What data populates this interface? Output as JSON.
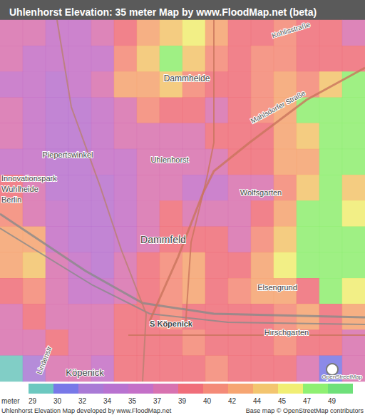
{
  "chart_data": {
    "type": "heatmap",
    "title": "Uhlenhorst Elevation: 35 meter Map by www.FloodMap.net (beta)",
    "tick_labels": false,
    "cells": [
      [
        37,
        37,
        35,
        35,
        37,
        39,
        42,
        44,
        45,
        42,
        39,
        39,
        40,
        39,
        39,
        37
      ],
      [
        37,
        35,
        35,
        35,
        35,
        40,
        44,
        47,
        44,
        40,
        39,
        40,
        40,
        39,
        39,
        39
      ],
      [
        35,
        35,
        34,
        35,
        37,
        42,
        42,
        44,
        40,
        39,
        39,
        40,
        42,
        40,
        44,
        47
      ],
      [
        37,
        35,
        34,
        34,
        35,
        37,
        40,
        39,
        39,
        37,
        39,
        40,
        42,
        47,
        47,
        47
      ],
      [
        37,
        35,
        34,
        34,
        35,
        37,
        37,
        37,
        37,
        39,
        39,
        39,
        42,
        44,
        47,
        47
      ],
      [
        35,
        35,
        34,
        34,
        35,
        35,
        37,
        37,
        37,
        37,
        39,
        39,
        42,
        42,
        47,
        47
      ],
      [
        39,
        37,
        34,
        34,
        34,
        35,
        37,
        37,
        35,
        35,
        37,
        37,
        40,
        44,
        47,
        44
      ],
      [
        40,
        37,
        35,
        34,
        34,
        35,
        37,
        39,
        37,
        37,
        37,
        39,
        42,
        47,
        47,
        45
      ],
      [
        42,
        42,
        35,
        34,
        34,
        35,
        37,
        39,
        39,
        39,
        37,
        40,
        44,
        47,
        47,
        47
      ],
      [
        42,
        44,
        37,
        35,
        34,
        37,
        39,
        40,
        42,
        39,
        39,
        42,
        45,
        47,
        47,
        47
      ],
      [
        39,
        40,
        37,
        35,
        35,
        37,
        39,
        40,
        42,
        39,
        40,
        42,
        42,
        39,
        47,
        45
      ],
      [
        37,
        39,
        37,
        37,
        37,
        39,
        39,
        40,
        39,
        39,
        39,
        39,
        40,
        42,
        39,
        42
      ],
      [
        37,
        37,
        39,
        37,
        37,
        39,
        39,
        39,
        40,
        39,
        39,
        39,
        40,
        39,
        39,
        37
      ],
      [
        29,
        32,
        37,
        37,
        35,
        39,
        39,
        39,
        39,
        40,
        39,
        39,
        39,
        37,
        30,
        37
      ]
    ],
    "colorbar": {
      "label": "meter",
      "ticks": [
        29,
        30,
        32,
        34,
        35,
        37,
        39,
        40,
        42,
        44,
        45,
        47,
        49
      ],
      "colors": [
        "#6cc8c0",
        "#7878e8",
        "#a97ad6",
        "#b872d0",
        "#c470c8",
        "#d872b0",
        "#f06e7a",
        "#f48a78",
        "#f6a572",
        "#f3c56f",
        "#f1ee74",
        "#8ff072",
        "#6ee07a"
      ]
    },
    "place_labels": [
      "Dammheide",
      "Piepertswinkel",
      "Uhlenhorst",
      "Innovationspark",
      "Wuhlheide",
      "Berlin",
      "Wolfsgarten",
      "Dammfeld",
      "Elsengrund",
      "S Köpenick",
      "Köpenick",
      "Hirschgarten"
    ],
    "street_labels": [
      "Mahlsdorfer Straße",
      "Kohlisstraße",
      "Lindenstr"
    ],
    "footer_left": "Uhlenhorst Elevation Map developed by www.FloodMap.net",
    "footer_right": "Base map © OpenStreetMap contributors",
    "logo": "OpenStreetMap"
  }
}
